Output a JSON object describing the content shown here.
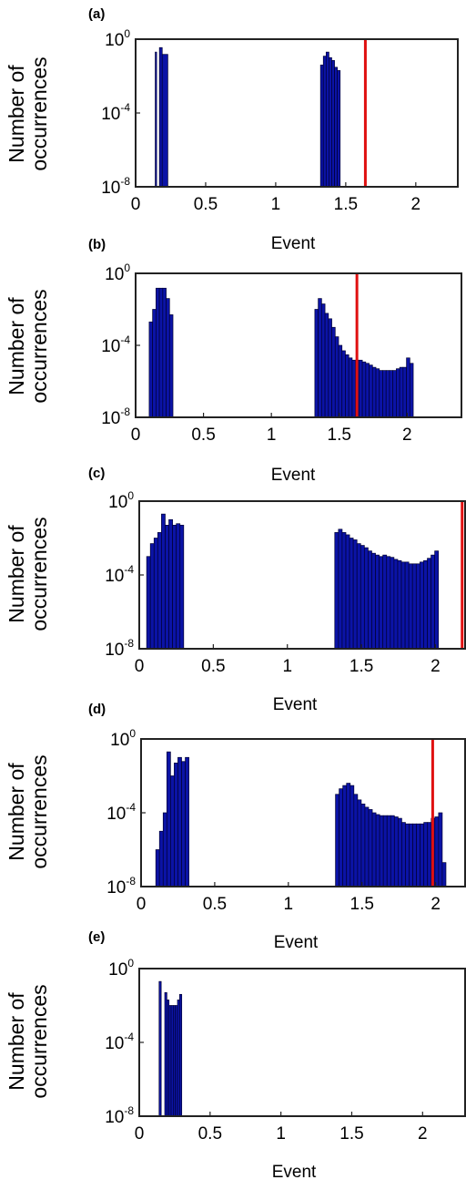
{
  "colors": {
    "bar": "#0b13a6",
    "bar_edge": "#000033",
    "threshold": "#e01010",
    "axes": "#222222"
  },
  "chart_data": [
    {
      "type": "bar",
      "panel": "(a)",
      "xlabel": "Event",
      "ylabel": [
        "Number of",
        "occurrences"
      ],
      "yscale": "log",
      "xlim": [
        0,
        2.3
      ],
      "ylim": [
        1e-08,
        1
      ],
      "xticks": [
        "0",
        "0.5",
        "1",
        "1.5",
        "2"
      ],
      "yticks": [
        "10",
        "10",
        "10"
      ],
      "ytick_exponents": [
        "0",
        "-4",
        "-8"
      ],
      "threshold": 1.64,
      "bars": [
        [
          0.14,
          0.15,
          0.2
        ],
        [
          0.17,
          0.19,
          0.35
        ],
        [
          0.19,
          0.23,
          0.15
        ],
        [
          1.32,
          1.34,
          0.04
        ],
        [
          1.34,
          1.36,
          0.12
        ],
        [
          1.36,
          1.38,
          0.2
        ],
        [
          1.38,
          1.4,
          0.1
        ],
        [
          1.4,
          1.42,
          0.07
        ],
        [
          1.42,
          1.44,
          0.03
        ],
        [
          1.44,
          1.46,
          0.02
        ]
      ]
    },
    {
      "type": "bar",
      "panel": "(b)",
      "xlabel": "Event",
      "ylabel": [
        "Number of",
        "occurrences"
      ],
      "yscale": "log",
      "xlim": [
        0,
        2.4
      ],
      "ylim": [
        1e-08,
        1
      ],
      "xticks": [
        "0",
        "0.5",
        "1",
        "1.5",
        "2"
      ],
      "yticks": [
        "10",
        "10",
        "10"
      ],
      "ytick_exponents": [
        "0",
        "-4",
        "-8"
      ],
      "threshold": 1.63,
      "bars": [
        [
          0.1,
          0.125,
          0.002
        ],
        [
          0.125,
          0.15,
          0.01
        ],
        [
          0.15,
          0.175,
          0.15
        ],
        [
          0.175,
          0.2,
          0.15
        ],
        [
          0.2,
          0.225,
          0.15
        ],
        [
          0.225,
          0.25,
          0.04
        ],
        [
          0.25,
          0.275,
          0.005
        ],
        [
          1.32,
          1.345,
          0.01
        ],
        [
          1.345,
          1.37,
          0.04
        ],
        [
          1.37,
          1.395,
          0.02
        ],
        [
          1.395,
          1.42,
          0.006
        ],
        [
          1.42,
          1.445,
          0.003
        ],
        [
          1.445,
          1.47,
          0.001
        ],
        [
          1.47,
          1.495,
          0.0003
        ],
        [
          1.495,
          1.52,
          0.0001
        ],
        [
          1.52,
          1.545,
          5e-05
        ],
        [
          1.545,
          1.57,
          3e-05
        ],
        [
          1.57,
          1.595,
          2e-05
        ],
        [
          1.595,
          1.62,
          1.5e-05
        ],
        [
          1.62,
          1.645,
          1.5e-05
        ],
        [
          1.645,
          1.67,
          1.5e-05
        ],
        [
          1.67,
          1.695,
          1.2e-05
        ],
        [
          1.695,
          1.72,
          1e-05
        ],
        [
          1.72,
          1.745,
          8e-06
        ],
        [
          1.745,
          1.77,
          6e-06
        ],
        [
          1.77,
          1.795,
          5e-06
        ],
        [
          1.795,
          1.82,
          4e-06
        ],
        [
          1.82,
          1.845,
          4e-06
        ],
        [
          1.845,
          1.87,
          4e-06
        ],
        [
          1.87,
          1.895,
          4e-06
        ],
        [
          1.895,
          1.92,
          4e-06
        ],
        [
          1.92,
          1.945,
          5e-06
        ],
        [
          1.945,
          1.97,
          6e-06
        ],
        [
          1.97,
          1.995,
          6e-06
        ],
        [
          1.995,
          2.02,
          2e-05
        ],
        [
          2.02,
          2.045,
          1e-05
        ]
      ]
    },
    {
      "type": "bar",
      "panel": "(c)",
      "xlabel": "Event",
      "ylabel": [
        "Number of",
        "occurrences"
      ],
      "yscale": "log",
      "xlim": [
        0,
        2.2
      ],
      "ylim": [
        1e-08,
        1
      ],
      "xticks": [
        "0",
        "0.5",
        "1",
        "1.5",
        "2"
      ],
      "yticks": [
        "10",
        "10",
        "10"
      ],
      "ytick_exponents": [
        "0",
        "-4",
        "-8"
      ],
      "threshold": 2.18,
      "bars": [
        [
          0.05,
          0.075,
          0.001
        ],
        [
          0.075,
          0.1,
          0.005
        ],
        [
          0.1,
          0.125,
          0.01
        ],
        [
          0.125,
          0.15,
          0.02
        ],
        [
          0.15,
          0.175,
          0.2
        ],
        [
          0.175,
          0.2,
          0.05
        ],
        [
          0.2,
          0.225,
          0.1
        ],
        [
          0.225,
          0.25,
          0.05
        ],
        [
          0.25,
          0.275,
          0.06
        ],
        [
          0.275,
          0.3,
          0.05
        ],
        [
          1.32,
          1.345,
          0.02
        ],
        [
          1.345,
          1.37,
          0.03
        ],
        [
          1.37,
          1.395,
          0.02
        ],
        [
          1.395,
          1.42,
          0.015
        ],
        [
          1.42,
          1.445,
          0.01
        ],
        [
          1.445,
          1.47,
          0.008
        ],
        [
          1.47,
          1.495,
          0.005
        ],
        [
          1.495,
          1.52,
          0.004
        ],
        [
          1.52,
          1.545,
          0.003
        ],
        [
          1.545,
          1.57,
          0.002
        ],
        [
          1.57,
          1.595,
          0.0015
        ],
        [
          1.595,
          1.62,
          0.0012
        ],
        [
          1.62,
          1.645,
          0.001
        ],
        [
          1.645,
          1.67,
          0.0012
        ],
        [
          1.67,
          1.695,
          0.001
        ],
        [
          1.695,
          1.72,
          0.0009
        ],
        [
          1.72,
          1.745,
          0.0007
        ],
        [
          1.745,
          1.77,
          0.0006
        ],
        [
          1.77,
          1.795,
          0.0005
        ],
        [
          1.795,
          1.82,
          0.0005
        ],
        [
          1.82,
          1.845,
          0.0004
        ],
        [
          1.845,
          1.87,
          0.0004
        ],
        [
          1.87,
          1.895,
          0.0004
        ],
        [
          1.895,
          1.92,
          0.0005
        ],
        [
          1.92,
          1.945,
          0.0006
        ],
        [
          1.945,
          1.97,
          0.0008
        ],
        [
          1.97,
          1.995,
          0.0012
        ],
        [
          1.995,
          2.02,
          0.002
        ]
      ]
    },
    {
      "type": "bar",
      "panel": "(d)",
      "xlabel": "Event",
      "ylabel": [
        "Number of",
        "occurrences"
      ],
      "yscale": "log",
      "xlim": [
        0,
        2.2
      ],
      "ylim": [
        1e-08,
        1
      ],
      "xticks": [
        "0",
        "0.5",
        "1",
        "1.5",
        "2"
      ],
      "yticks": [
        "10",
        "10",
        "10"
      ],
      "ytick_exponents": [
        "0",
        "-4",
        "-8"
      ],
      "threshold": 1.98,
      "bars": [
        [
          0.1,
          0.125,
          1e-06
        ],
        [
          0.125,
          0.15,
          1e-05
        ],
        [
          0.15,
          0.175,
          0.0001
        ],
        [
          0.175,
          0.2,
          0.2
        ],
        [
          0.2,
          0.225,
          0.01
        ],
        [
          0.225,
          0.25,
          0.05
        ],
        [
          0.25,
          0.275,
          0.1
        ],
        [
          0.275,
          0.3,
          0.06
        ],
        [
          0.3,
          0.325,
          0.1
        ],
        [
          1.32,
          1.345,
          0.001
        ],
        [
          1.345,
          1.37,
          0.002
        ],
        [
          1.37,
          1.395,
          0.003
        ],
        [
          1.395,
          1.42,
          0.004
        ],
        [
          1.42,
          1.445,
          0.003
        ],
        [
          1.445,
          1.47,
          0.001
        ],
        [
          1.47,
          1.495,
          0.0005
        ],
        [
          1.495,
          1.52,
          0.0003
        ],
        [
          1.52,
          1.545,
          0.0002
        ],
        [
          1.545,
          1.57,
          0.00015
        ],
        [
          1.57,
          1.595,
          0.0001
        ],
        [
          1.595,
          1.62,
          8e-05
        ],
        [
          1.62,
          1.645,
          7e-05
        ],
        [
          1.645,
          1.67,
          7e-05
        ],
        [
          1.67,
          1.695,
          7e-05
        ],
        [
          1.695,
          1.72,
          7e-05
        ],
        [
          1.72,
          1.745,
          6e-05
        ],
        [
          1.745,
          1.77,
          5e-05
        ],
        [
          1.77,
          1.795,
          3e-05
        ],
        [
          1.795,
          1.82,
          2.5e-05
        ],
        [
          1.82,
          1.845,
          2.5e-05
        ],
        [
          1.845,
          1.87,
          2.5e-05
        ],
        [
          1.87,
          1.895,
          2.5e-05
        ],
        [
          1.895,
          1.92,
          2.5e-05
        ],
        [
          1.92,
          1.945,
          3e-05
        ],
        [
          1.945,
          1.97,
          3e-05
        ],
        [
          1.97,
          1.995,
          5e-05
        ],
        [
          1.995,
          2.02,
          6e-05
        ],
        [
          2.02,
          2.045,
          0.0001
        ],
        [
          2.045,
          2.07,
          2e-07
        ]
      ]
    },
    {
      "type": "bar",
      "panel": "(e)",
      "xlabel": "Event",
      "ylabel": [
        "Number of",
        "occurrences"
      ],
      "yscale": "log",
      "xlim": [
        0,
        2.3
      ],
      "ylim": [
        1e-08,
        1
      ],
      "xticks": [
        "0",
        "0.5",
        "1",
        "1.5",
        "2"
      ],
      "yticks": [
        "10",
        "10",
        "10"
      ],
      "ytick_exponents": [
        "0",
        "-4",
        "-8"
      ],
      "threshold": null,
      "bars": [
        [
          0.14,
          0.155,
          0.2
        ],
        [
          0.18,
          0.195,
          0.05
        ],
        [
          0.195,
          0.21,
          0.02
        ],
        [
          0.21,
          0.225,
          0.01
        ],
        [
          0.225,
          0.24,
          0.01
        ],
        [
          0.24,
          0.255,
          0.01
        ],
        [
          0.255,
          0.27,
          0.01
        ],
        [
          0.27,
          0.285,
          0.02
        ],
        [
          0.285,
          0.3,
          0.04
        ]
      ]
    }
  ]
}
